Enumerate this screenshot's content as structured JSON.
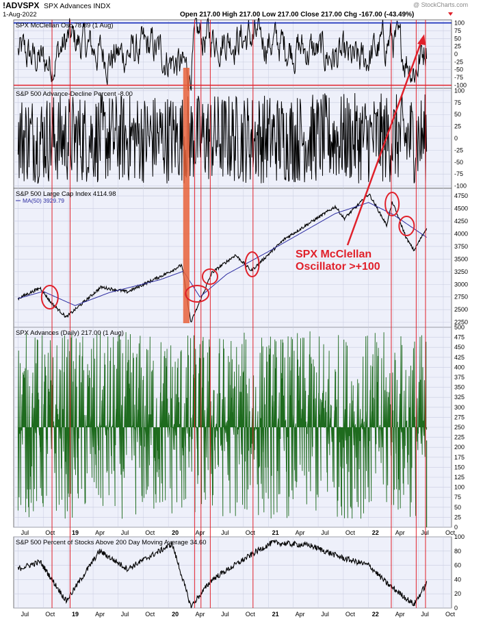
{
  "header": {
    "symbol": "!ADVSPX",
    "name": "SPX Advances INDX",
    "date": "1-Aug-2022",
    "watermark": "@ StockCharts.com",
    "quote": "Open 217.00  High 217.00  Low 217.00  Close 217.00  Chg -167.00 (-43.49%)"
  },
  "annotation": {
    "line1": "SPX McClellan",
    "line2": "Oscillator >+100",
    "color": "#e0202a"
  },
  "x_axis": {
    "ticks": [
      "Jul",
      "Oct",
      "19",
      "Apr",
      "Jul",
      "Oct",
      "20",
      "Apr",
      "Jul",
      "Oct",
      "21",
      "Apr",
      "Jul",
      "Oct",
      "22",
      "Apr",
      "Jul",
      "Oct"
    ]
  },
  "colors": {
    "panel_bg": "#eef0fa",
    "grid": "#c8cbe0",
    "price": "#000000",
    "ma": "#2a2aa0",
    "advances": "#1e6b1e",
    "threshold_line": "#0018b4",
    "neg_threshold_line": "#e0202a",
    "signal_line": "#e0202a",
    "highlight": "#e8623a"
  },
  "chart_data": [
    {
      "type": "line",
      "title": "SPX McClellan Osc 78.89 (1 Aug)",
      "y_ticks": [
        "100",
        "75",
        "50",
        "25",
        "0",
        "-25",
        "-50",
        "-75",
        "-100"
      ],
      "ylim": [
        -110,
        110
      ],
      "reference_lines": [
        100,
        -100
      ],
      "series": [
        {
          "name": "",
          "x": [
            "2018-07-01",
            "2018-10-25",
            "2019-01-05",
            "2019-06-01",
            "2019-11-01",
            "2020-03-20",
            "2020-04-10",
            "2020-06-08",
            "2020-11-09",
            "2021-06-01",
            "2021-12-01",
            "2022-03-25",
            "2022-06-20",
            "2022-08-01"
          ],
          "values": [
            10,
            -60,
            100,
            -20,
            40,
            -120,
            100,
            100,
            100,
            20,
            -60,
            100,
            -100,
            79
          ]
        }
      ]
    },
    {
      "type": "line",
      "title": "S&P 500 Advance-Decline Percent -8.00",
      "y_ticks": [
        "100",
        "75",
        "50",
        "25",
        "0",
        "-25",
        "-50",
        "-75",
        "-100"
      ],
      "ylim": [
        -105,
        105
      ],
      "series": [
        {
          "name": "",
          "x": [
            "2018-07-01",
            "2022-08-01"
          ],
          "values": [
            0,
            -8
          ]
        }
      ]
    },
    {
      "type": "line",
      "title": "S&P 500 Large Cap Index 4114.98",
      "y_ticks": [
        "4750",
        "4500",
        "4250",
        "4000",
        "3750",
        "3500",
        "3250",
        "3000",
        "2750",
        "2500",
        "2250"
      ],
      "ylim": [
        2150,
        4900
      ],
      "series": [
        {
          "name": "S&P 500 Large Cap Index",
          "x": [
            "2018-07-01",
            "2018-09-20",
            "2018-10-29",
            "2018-12-24",
            "2019-04-30",
            "2019-08-05",
            "2019-12-31",
            "2020-02-19",
            "2020-03-23",
            "2020-06-08",
            "2020-09-02",
            "2020-10-30",
            "2021-03-01",
            "2021-09-02",
            "2021-10-04",
            "2022-01-03",
            "2022-03-08",
            "2022-03-29",
            "2022-05-20",
            "2022-06-16",
            "2022-08-01"
          ],
          "values": [
            2720,
            2930,
            2640,
            2350,
            2945,
            2850,
            3230,
            3385,
            2240,
            3230,
            3580,
            3270,
            3900,
            4540,
            4300,
            4790,
            4170,
            4630,
            3900,
            3670,
            4115
          ]
        },
        {
          "name": "MA(50) 3929.79",
          "x": [
            "2018-07-01",
            "2018-10-01",
            "2019-01-25",
            "2019-06-01",
            "2019-12-01",
            "2020-02-25",
            "2020-04-25",
            "2020-08-01",
            "2021-01-01",
            "2021-09-01",
            "2022-01-01",
            "2022-04-01",
            "2022-08-01"
          ],
          "values": [
            2720,
            2860,
            2580,
            2840,
            3090,
            3260,
            2750,
            3200,
            3650,
            4400,
            4620,
            4380,
            3930
          ]
        }
      ]
    },
    {
      "type": "bar",
      "title": "SPX Advances (Daily) 217.00 (1 Aug)",
      "y_ticks": [
        "500",
        "475",
        "450",
        "425",
        "400",
        "375",
        "350",
        "325",
        "300",
        "275",
        "250",
        "225",
        "200",
        "175",
        "150",
        "125",
        "100",
        "75",
        "50",
        "25",
        "0"
      ],
      "ylim": [
        0,
        500
      ],
      "series": [
        {
          "name": "",
          "x": [
            "2022-08-01"
          ],
          "values": [
            217
          ]
        }
      ]
    },
    {
      "type": "line",
      "title": "S&P 500 Percent of Stocks Above 200 Day Moving Average 34.60",
      "y_ticks": [
        "100",
        "80",
        "60",
        "40",
        "20",
        "0"
      ],
      "ylim": [
        0,
        100
      ],
      "series": [
        {
          "name": "",
          "x": [
            "2018-07-01",
            "2018-09-20",
            "2018-12-24",
            "2019-04-25",
            "2019-08-05",
            "2020-01-15",
            "2020-03-23",
            "2020-06-08",
            "2020-11-20",
            "2021-01-15",
            "2021-06-01",
            "2021-10-01",
            "2022-01-03",
            "2022-03-08",
            "2022-06-16",
            "2022-08-01"
          ],
          "values": [
            55,
            65,
            10,
            80,
            55,
            90,
            2,
            40,
            80,
            92,
            88,
            70,
            60,
            35,
            5,
            34.6
          ]
        }
      ]
    }
  ],
  "signals": [
    "2018-11-02",
    "2019-01-07",
    "2020-04-06",
    "2020-04-29",
    "2020-06-02",
    "2020-11-05",
    "2022-03-25",
    "2022-06-24",
    "2022-07-28"
  ],
  "circled_events": [
    "2018-10-25",
    "2020-04-15",
    "2020-06-01",
    "2020-11-02",
    "2022-03-28",
    "2022-05-20"
  ],
  "highlight_range": [
    "2020-02-24",
    "2020-03-18"
  ]
}
